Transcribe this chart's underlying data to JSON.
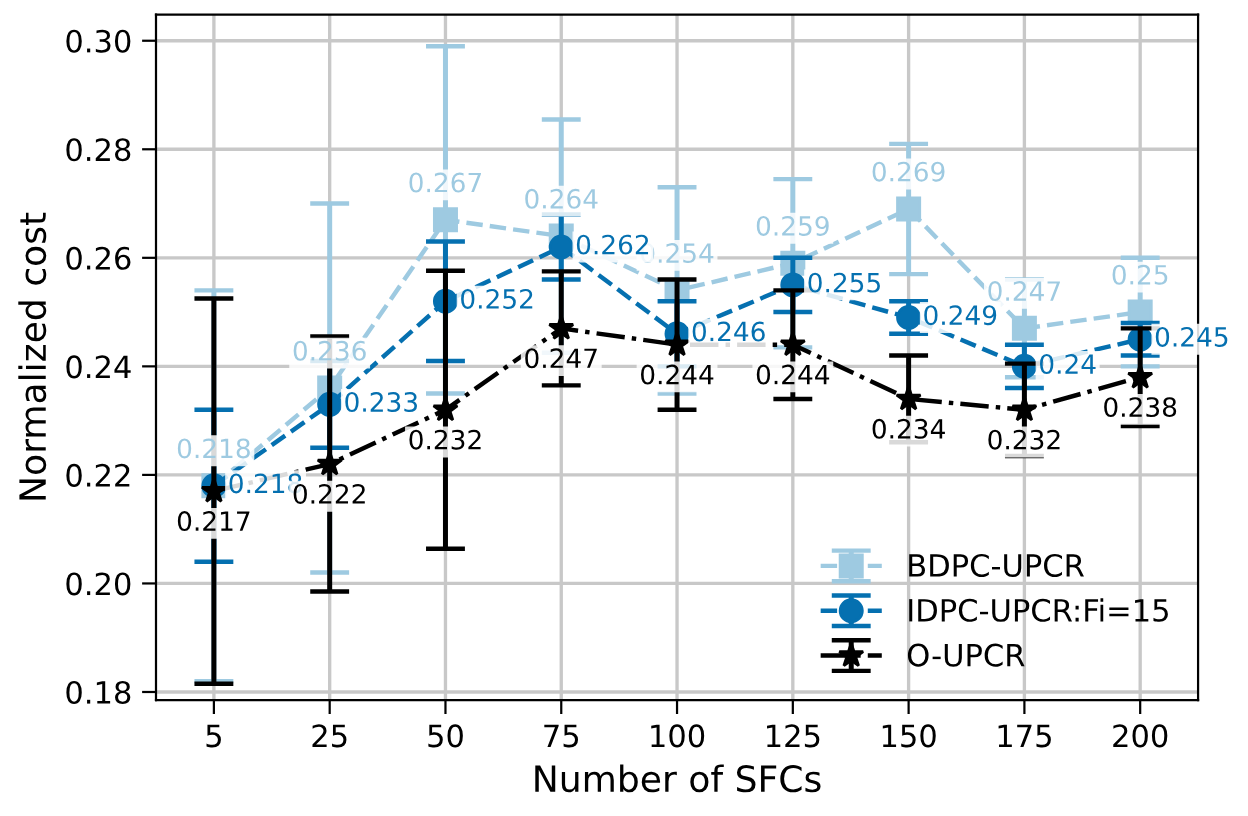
{
  "chart_data": {
    "type": "line",
    "xlabel": "Number of SFCs",
    "ylabel": "Normalized cost",
    "categories": [
      "5",
      "25",
      "50",
      "75",
      "100",
      "125",
      "150",
      "175",
      "200"
    ],
    "series": [
      {
        "name": "BDPC-UPCR",
        "color": "#9ecae1",
        "marker": "square",
        "line_style": "dashed",
        "values": [
          0.218,
          0.236,
          0.267,
          0.264,
          0.254,
          0.259,
          0.269,
          0.247,
          0.25
        ],
        "errors": [
          0.036,
          0.034,
          0.032,
          0.0215,
          0.019,
          0.0155,
          0.012,
          0.009,
          0.01
        ]
      },
      {
        "name": "IDPC-UPCR:Fi=15",
        "color": "#0570b0",
        "marker": "circle",
        "line_style": "dashed",
        "values": [
          0.218,
          0.233,
          0.252,
          0.262,
          0.246,
          0.255,
          0.249,
          0.24,
          0.245
        ],
        "errors": [
          0.014,
          0.008,
          0.011,
          0.006,
          0.006,
          0.005,
          0.003,
          0.004,
          0.003
        ]
      },
      {
        "name": "O-UPCR",
        "color": "#000000",
        "marker": "star",
        "line_style": "dashdot",
        "values": [
          0.217,
          0.222,
          0.232,
          0.247,
          0.244,
          0.244,
          0.234,
          0.232,
          0.238
        ],
        "errors": [
          0.0355,
          0.0235,
          0.0256,
          0.0105,
          0.012,
          0.01,
          0.008,
          0.0085,
          0.009
        ]
      }
    ],
    "ylim": [
      0.1785,
      0.3048
    ],
    "yticks": [
      {
        "value": 0.18,
        "label": "0.18"
      },
      {
        "value": 0.2,
        "label": "0.20"
      },
      {
        "value": 0.22,
        "label": "0.22"
      },
      {
        "value": 0.24,
        "label": "0.24"
      },
      {
        "value": 0.26,
        "label": "0.26"
      },
      {
        "value": 0.28,
        "label": "0.28"
      },
      {
        "value": 0.3,
        "label": "0.30"
      }
    ],
    "data_labels": true,
    "grid": true,
    "legend": "lower right"
  }
}
